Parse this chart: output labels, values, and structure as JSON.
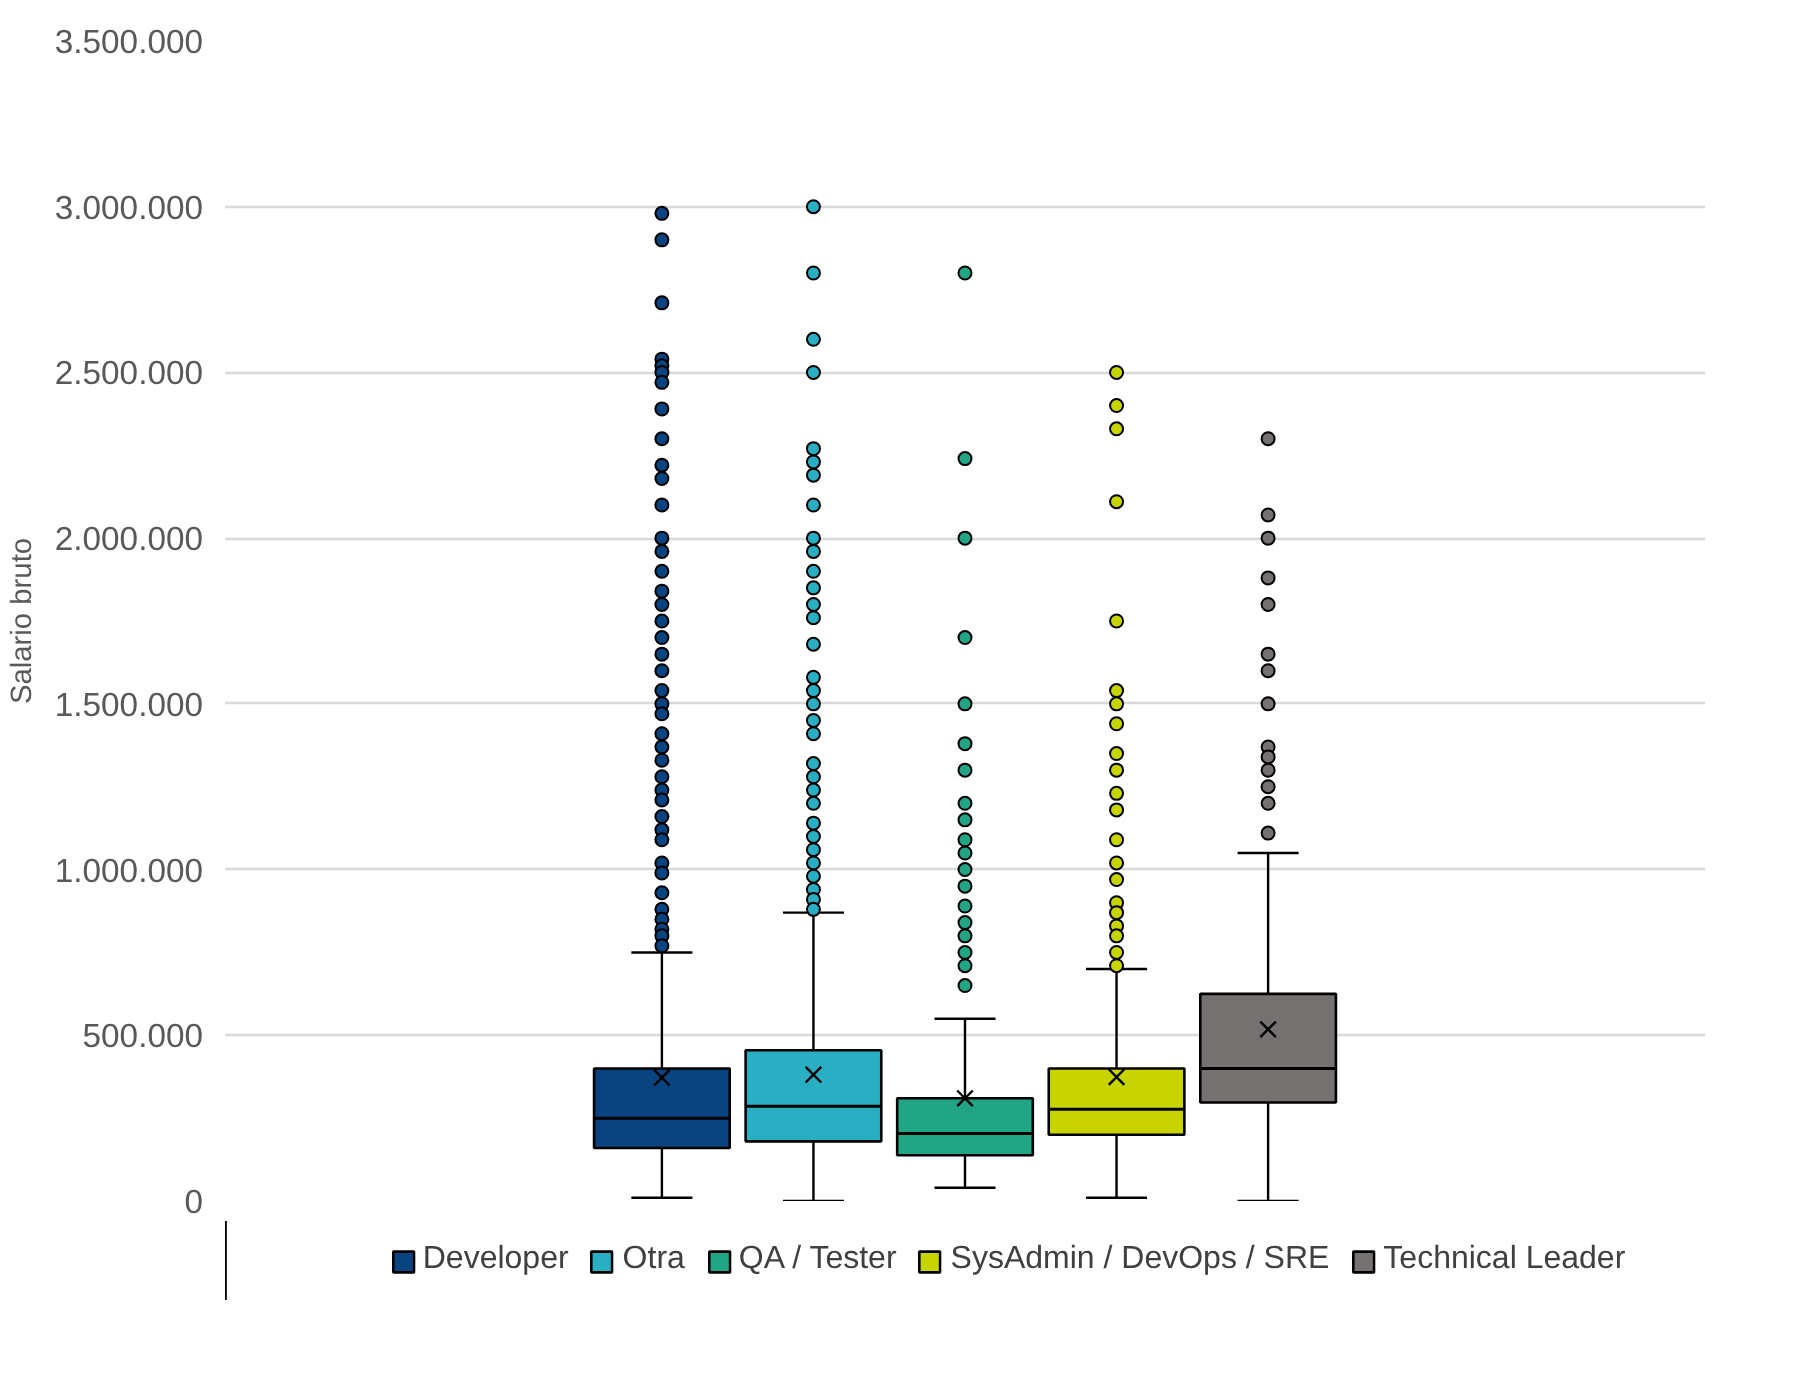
{
  "chart_data": {
    "type": "box",
    "ylabel": "Salario bruto",
    "categories": [
      null
    ],
    "ylim": [
      0,
      3500000
    ],
    "yticks": [
      0,
      {
        "value": 500000,
        "label": "500.000"
      },
      {
        "value": 1000000,
        "label": "1.000.000"
      },
      {
        "value": 1500000,
        "label": "1.500.000"
      },
      {
        "value": 2000000,
        "label": "2.000.000"
      },
      {
        "value": 2500000,
        "label": "2.500.000"
      },
      {
        "value": 3000000,
        "label": "3.000.000"
      },
      {
        "value": 3500000,
        "label": "3.500.000"
      }
    ],
    "grid": "y",
    "legend": "bottom",
    "marker": "circle",
    "series": [
      {
        "name": "Developer",
        "color": "#0a4480",
        "boxes": [
          {
            "low": 10000,
            "q1": 160000,
            "median": 250000,
            "q3": 400000,
            "high": 750000,
            "mean": 372000,
            "outliers": [
              2980000,
              2900000,
              2710000,
              2540000,
              2520000,
              2500000,
              2470000,
              2390000,
              2300000,
              2220000,
              2180000,
              2100000,
              2000000,
              1960000,
              1900000,
              1840000,
              1800000,
              1750000,
              1700000,
              1650000,
              1600000,
              1540000,
              1500000,
              1470000,
              1410000,
              1370000,
              1330000,
              1280000,
              1240000,
              1210000,
              1160000,
              1120000,
              1090000,
              1020000,
              990000,
              930000,
              880000,
              850000,
              820000,
              800000,
              770000
            ]
          }
        ]
      },
      {
        "name": "Otra",
        "color": "#2aaec4",
        "boxes": [
          {
            "low": 0,
            "q1": 180000,
            "median": 286000,
            "q3": 455000,
            "high": 870000,
            "mean": 381000,
            "outliers": [
              3000000,
              2800000,
              2600000,
              2500000,
              2270000,
              2230000,
              2190000,
              2100000,
              2000000,
              1960000,
              1900000,
              1850000,
              1800000,
              1760000,
              1680000,
              1580000,
              1540000,
              1500000,
              1450000,
              1410000,
              1320000,
              1280000,
              1240000,
              1200000,
              1140000,
              1100000,
              1060000,
              1020000,
              980000,
              940000,
              910000,
              880000
            ]
          }
        ]
      },
      {
        "name": "QA / Tester",
        "color": "#22a585",
        "boxes": [
          {
            "low": 40000,
            "q1": 138000,
            "median": 204000,
            "q3": 310000,
            "high": 550000,
            "mean": 310000,
            "outliers": [
              2800000,
              2240000,
              2000000,
              1700000,
              1500000,
              1380000,
              1300000,
              1200000,
              1150000,
              1090000,
              1050000,
              1000000,
              950000,
              890000,
              840000,
              800000,
              750000,
              710000,
              650000
            ]
          }
        ]
      },
      {
        "name": "SysAdmin / DevOps / SRE",
        "color": "#c8d400",
        "boxes": [
          {
            "low": 10000,
            "q1": 200000,
            "median": 277000,
            "q3": 400000,
            "high": 700000,
            "mean": 374000,
            "outliers": [
              2500000,
              2400000,
              2330000,
              2110000,
              1750000,
              1540000,
              1500000,
              1440000,
              1350000,
              1300000,
              1230000,
              1180000,
              1090000,
              1020000,
              970000,
              900000,
              870000,
              830000,
              800000,
              750000,
              710000
            ]
          }
        ]
      },
      {
        "name": "Technical Leader",
        "color": "#757170",
        "boxes": [
          {
            "low": 0,
            "q1": 297000,
            "median": 400000,
            "q3": 625000,
            "high": 1050000,
            "mean": 518000,
            "outliers": [
              2300000,
              2070000,
              2000000,
              1880000,
              1800000,
              1650000,
              1600000,
              1500000,
              1370000,
              1340000,
              1300000,
              1250000,
              1200000,
              1110000
            ]
          }
        ]
      }
    ]
  }
}
